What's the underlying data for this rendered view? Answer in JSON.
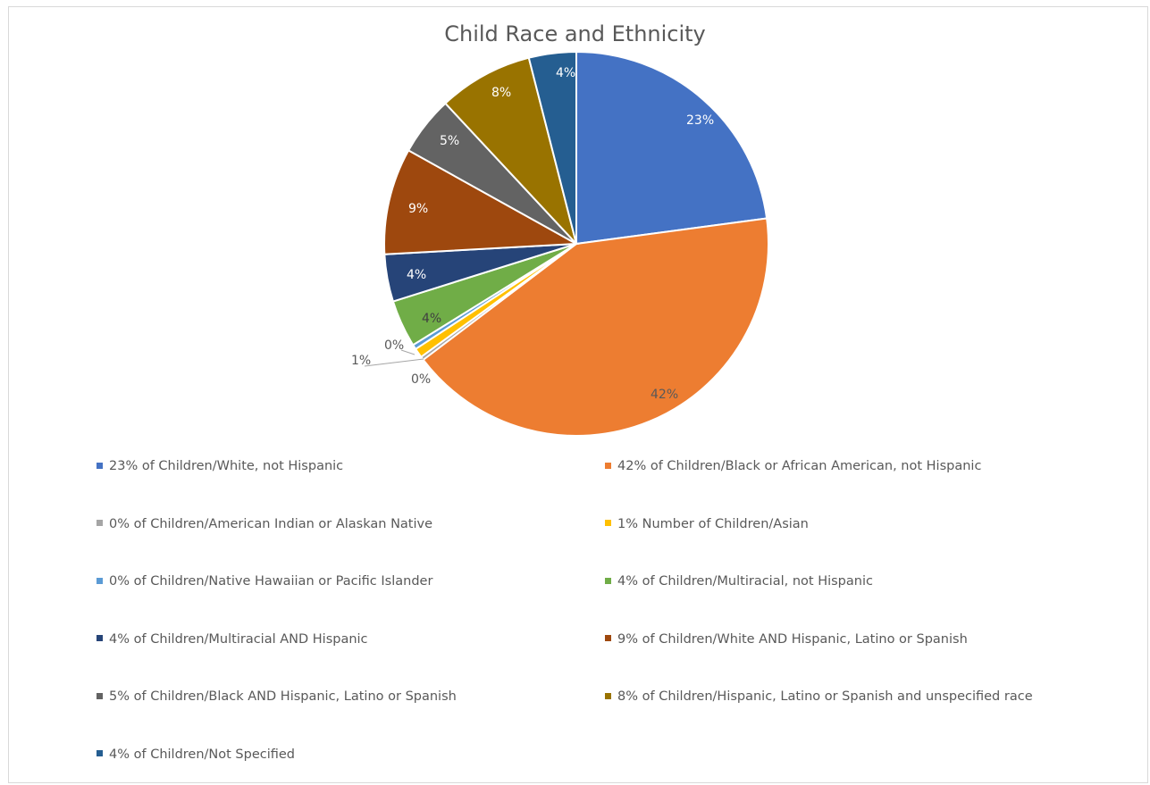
{
  "chart_data": {
    "type": "pie",
    "title": "Child Race and Ethnicity",
    "slices": [
      {
        "label": "23% of Children/White, not Hispanic",
        "value": 23,
        "data_label": "23%",
        "color": "#4472C4",
        "label_color": "#ffffff"
      },
      {
        "label": "42% of Children/Black or African American, not Hispanic",
        "value": 42,
        "data_label": "42%",
        "color": "#ED7D31",
        "label_color": "#595959"
      },
      {
        "label": "0% of Children/American Indian or Alaskan Native",
        "value": 0.3,
        "data_label": "0%",
        "color": "#A5A5A5",
        "label_color": "#595959"
      },
      {
        "label": "1% Number of Children/Asian",
        "value": 0.8,
        "data_label": "1%",
        "color": "#FFC000",
        "label_color": "#595959"
      },
      {
        "label": "0% of Children/Native Hawaiian or Pacific Islander",
        "value": 0.4,
        "data_label": "0%",
        "color": "#5B9BD5",
        "label_color": "#595959"
      },
      {
        "label": "4% of Children/Multiracial, not Hispanic",
        "value": 4,
        "data_label": "4%",
        "color": "#70AD47",
        "label_color": "#404040"
      },
      {
        "label": "4% of Children/Multiracial AND Hispanic",
        "value": 4,
        "data_label": "4%",
        "color": "#264478",
        "label_color": "#ffffff"
      },
      {
        "label": "9% of Children/White AND Hispanic, Latino or Spanish",
        "value": 9,
        "data_label": "9%",
        "color": "#9E480E",
        "label_color": "#ffffff"
      },
      {
        "label": "5% of Children/Black AND Hispanic, Latino or Spanish",
        "value": 5,
        "data_label": "5%",
        "color": "#636363",
        "label_color": "#ffffff"
      },
      {
        "label": "8% of Children/Hispanic, Latino or Spanish and unspecified race",
        "value": 8,
        "data_label": "8%",
        "color": "#997300",
        "label_color": "#ffffff"
      },
      {
        "label": "4% of Children/Not Specified",
        "value": 4,
        "data_label": "4%",
        "color": "#255E91",
        "label_color": "#ffffff"
      }
    ],
    "legend_position": "bottom"
  }
}
